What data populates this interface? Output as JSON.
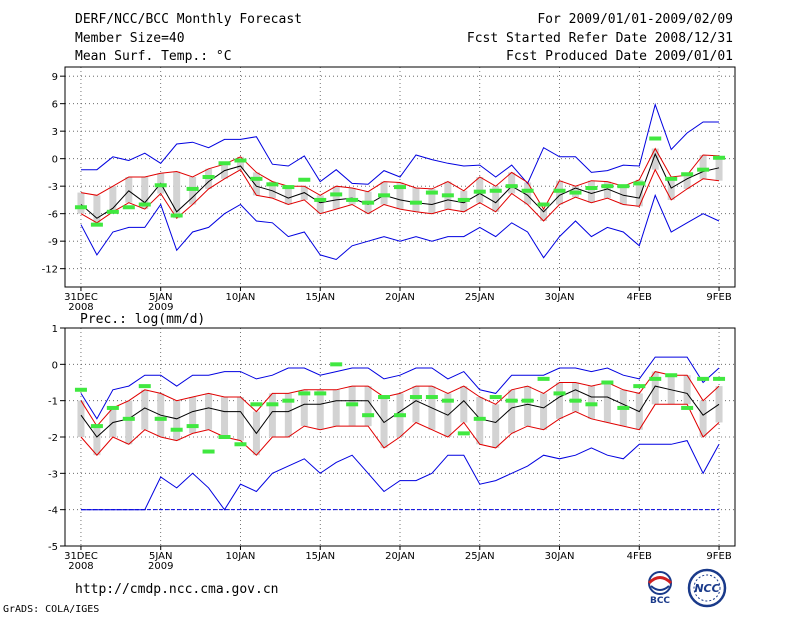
{
  "header": {
    "title": "DERF/NCC/BCC Monthly Forecast",
    "member_size": "Member Size=40",
    "variable": "Mean Surf. Temp.: °C",
    "period": "For 2009/01/01-2009/02/09",
    "fcst_started": "Fcst Started Refer Date 2008/12/31",
    "fcst_produced": "Fcst Produced Date 2009/01/01"
  },
  "footer": {
    "url": "http://cmdp.ncc.cma.gov.cn",
    "credit": "GrADS: COLA/IGES",
    "logo_left_text": "BCC",
    "logo_right_text": "NCC"
  },
  "colors": {
    "box": "#d3d3d3",
    "obs": "#40e840",
    "mean": "#000000",
    "inner": "#e00000",
    "outer": "#0000e0",
    "grid": "#555555"
  },
  "chart_data": [
    {
      "type": "line",
      "title": "Mean Surf. Temp.: °C",
      "xlabel": "",
      "ylabel": "°C",
      "x_ticks": [
        "31DEC\n2008",
        "5JAN\n2009",
        "10JAN",
        "15JAN",
        "20JAN",
        "25JAN",
        "30JAN",
        "4FEB",
        "9FEB"
      ],
      "ylim": [
        -14,
        10
      ],
      "yticks": [
        9,
        6,
        3,
        0,
        -3,
        -6,
        -9,
        -12
      ],
      "days": 41,
      "series": [
        {
          "name": "ensemble_max",
          "values": [
            -1.2,
            -1.2,
            0.2,
            -0.2,
            0.6,
            -0.5,
            1.6,
            1.8,
            1.2,
            2.1,
            2.1,
            2.4,
            -0.6,
            -0.8,
            0.3,
            -2.5,
            -1.2,
            -2.7,
            -2.8,
            -1.3,
            -2.0,
            0.4,
            -0.1,
            -0.5,
            -0.8,
            -0.7,
            -2.0,
            -0.7,
            -2.7,
            1.2,
            0.2,
            0.2,
            -1.5,
            -1.3,
            -0.7,
            -0.8,
            5.9,
            1.0,
            2.8,
            4.0,
            4.0
          ]
        },
        {
          "name": "upper_quartile",
          "values": [
            -3.7,
            -4.0,
            -3.0,
            -2.0,
            -2.0,
            -1.6,
            -1.4,
            -2.0,
            -1.1,
            -0.6,
            0.2,
            -1.5,
            -2.5,
            -3.0,
            -3.0,
            -4.0,
            -3.0,
            -3.2,
            -3.6,
            -2.5,
            -2.6,
            -3.2,
            -3.3,
            -2.5,
            -3.5,
            -2.0,
            -3.0,
            -1.5,
            -2.6,
            -5.5,
            -2.4,
            -3.0,
            -2.4,
            -2.5,
            -3.0,
            -2.3,
            1.1,
            -2.0,
            -1.8,
            0.4,
            0.3
          ]
        },
        {
          "name": "ensemble_mean",
          "values": [
            -5.0,
            -6.5,
            -5.4,
            -3.5,
            -4.8,
            -2.7,
            -5.8,
            -4.2,
            -2.5,
            -1.3,
            -0.8,
            -3.0,
            -3.5,
            -4.3,
            -3.7,
            -4.8,
            -4.5,
            -4.3,
            -5.0,
            -4.0,
            -4.5,
            -4.8,
            -5.0,
            -4.5,
            -4.8,
            -3.8,
            -4.8,
            -3.0,
            -4.0,
            -5.8,
            -4.0,
            -3.2,
            -3.8,
            -3.3,
            -4.0,
            -4.3,
            0.5,
            -3.2,
            -2.2,
            -1.4,
            -1.0
          ]
        },
        {
          "name": "lower_quartile",
          "values": [
            -6.0,
            -7.0,
            -5.8,
            -4.8,
            -5.5,
            -3.8,
            -6.5,
            -5.0,
            -3.3,
            -2.2,
            -1.2,
            -4.0,
            -4.3,
            -5.0,
            -4.5,
            -6.0,
            -5.5,
            -5.0,
            -6.0,
            -5.0,
            -5.5,
            -5.8,
            -6.0,
            -5.5,
            -5.8,
            -4.8,
            -5.8,
            -3.8,
            -5.0,
            -6.8,
            -5.0,
            -4.2,
            -4.8,
            -4.3,
            -5.0,
            -5.2,
            -1.2,
            -4.5,
            -3.3,
            -2.2,
            -2.4
          ]
        },
        {
          "name": "ensemble_min",
          "values": [
            -7.2,
            -10.5,
            -8.0,
            -7.5,
            -7.5,
            -5.0,
            -10.0,
            -8.0,
            -7.5,
            -6.0,
            -5.0,
            -6.8,
            -7.0,
            -8.5,
            -8.0,
            -10.5,
            -11.0,
            -9.5,
            -9.0,
            -8.5,
            -9.0,
            -8.5,
            -9.0,
            -8.5,
            -8.5,
            -7.5,
            -8.5,
            -7.0,
            -8.0,
            -10.8,
            -8.5,
            -6.8,
            -8.5,
            -7.5,
            -8.0,
            -9.5,
            -4.0,
            -8.0,
            -7.0,
            -6.0,
            -6.8
          ]
        },
        {
          "name": "observed",
          "values": [
            -5.3,
            -7.2,
            -5.8,
            -5.3,
            -5.0,
            -2.9,
            -6.2,
            -3.3,
            -2.0,
            -0.5,
            -0.2,
            -2.2,
            -2.8,
            -3.1,
            -2.3,
            -4.5,
            -3.9,
            -4.5,
            -4.8,
            -4.0,
            -3.1,
            -4.8,
            -3.7,
            -4.0,
            -4.5,
            -3.6,
            -3.5,
            -3.0,
            -3.5,
            -5.0,
            -3.5,
            -3.7,
            -3.2,
            -3.0,
            -3.0,
            -2.7,
            2.2,
            -2.2,
            -1.7,
            -1.2,
            0.1
          ]
        }
      ]
    },
    {
      "type": "line",
      "title": "Prec.: log(mm/d)",
      "xlabel": "",
      "ylabel": "log(mm/d)",
      "x_ticks": [
        "31DEC\n2008",
        "5JAN\n2009",
        "10JAN",
        "15JAN",
        "20JAN",
        "25JAN",
        "30JAN",
        "4FEB",
        "9FEB"
      ],
      "ylim": [
        -5,
        1
      ],
      "yticks": [
        1,
        0,
        -1,
        -2,
        -3,
        -4,
        -5
      ],
      "days": 41,
      "series": [
        {
          "name": "ensemble_max",
          "values": [
            -0.8,
            -1.5,
            -0.7,
            -0.6,
            -0.3,
            -0.3,
            -0.6,
            -0.3,
            -0.3,
            -0.2,
            -0.2,
            -0.4,
            -0.3,
            -0.1,
            -0.1,
            -0.3,
            -0.2,
            -0.1,
            -0.1,
            -0.4,
            -0.3,
            -0.1,
            -0.1,
            -0.4,
            -0.2,
            -0.7,
            -0.8,
            -0.3,
            -0.3,
            -0.3,
            -0.1,
            -0.1,
            -0.2,
            -0.1,
            -0.3,
            -0.4,
            0.2,
            0.2,
            0.2,
            -0.5,
            -0.1
          ]
        },
        {
          "name": "upper_quartile",
          "values": [
            -1.0,
            -1.7,
            -1.2,
            -1.0,
            -0.7,
            -0.8,
            -1.0,
            -0.9,
            -0.8,
            -0.9,
            -0.9,
            -1.3,
            -0.8,
            -0.8,
            -0.7,
            -0.7,
            -0.7,
            -0.6,
            -0.6,
            -0.9,
            -0.8,
            -0.6,
            -0.6,
            -0.8,
            -0.6,
            -0.9,
            -1.1,
            -0.7,
            -0.6,
            -0.8,
            -0.5,
            -0.5,
            -0.6,
            -0.5,
            -0.7,
            -0.8,
            -0.2,
            -0.3,
            -0.3,
            -1.0,
            -0.6
          ]
        },
        {
          "name": "ensemble_mean",
          "values": [
            -1.4,
            -2.0,
            -1.6,
            -1.5,
            -1.2,
            -1.4,
            -1.5,
            -1.3,
            -1.2,
            -1.3,
            -1.3,
            -1.9,
            -1.3,
            -1.3,
            -1.1,
            -1.1,
            -1.0,
            -1.0,
            -1.0,
            -1.6,
            -1.3,
            -1.0,
            -1.2,
            -1.4,
            -1.0,
            -1.5,
            -1.6,
            -1.2,
            -1.1,
            -1.2,
            -0.9,
            -0.7,
            -0.9,
            -0.9,
            -1.1,
            -1.3,
            -0.6,
            -0.7,
            -0.8,
            -1.4,
            -1.1
          ]
        },
        {
          "name": "lower_quartile",
          "values": [
            -2.0,
            -2.5,
            -2.0,
            -2.2,
            -1.8,
            -2.0,
            -2.1,
            -1.9,
            -1.8,
            -2.0,
            -2.1,
            -2.5,
            -2.0,
            -2.0,
            -1.7,
            -1.8,
            -1.7,
            -1.7,
            -1.7,
            -2.3,
            -2.0,
            -1.6,
            -1.8,
            -2.0,
            -1.6,
            -2.2,
            -2.3,
            -1.9,
            -1.7,
            -1.8,
            -1.5,
            -1.3,
            -1.5,
            -1.6,
            -1.7,
            -1.8,
            -1.1,
            -1.1,
            -1.1,
            -2.0,
            -1.6
          ]
        },
        {
          "name": "ensemble_min",
          "values": [
            -4.0,
            -4.0,
            -4.0,
            -4.0,
            -4.0,
            -3.1,
            -3.4,
            -3.0,
            -3.4,
            -4.0,
            -3.3,
            -3.5,
            -3.0,
            -2.8,
            -2.6,
            -3.0,
            -2.7,
            -2.5,
            -3.0,
            -3.5,
            -3.2,
            -3.2,
            -3.0,
            -2.5,
            -2.5,
            -3.3,
            -3.2,
            -3.0,
            -2.8,
            -2.5,
            -2.6,
            -2.5,
            -2.3,
            -2.5,
            -2.6,
            -2.2,
            -2.2,
            -2.2,
            -2.1,
            -3.0,
            -2.2
          ]
        },
        {
          "name": "observed",
          "values": [
            -0.7,
            -1.7,
            -1.2,
            -1.5,
            -0.6,
            -1.5,
            -1.8,
            -1.7,
            -2.4,
            -2.0,
            -2.2,
            -1.1,
            -1.1,
            -1.0,
            -0.8,
            -0.8,
            0.0,
            -1.1,
            -1.4,
            -0.9,
            -1.4,
            -0.9,
            -0.9,
            -1.0,
            -1.9,
            -1.5,
            -0.9,
            -1.0,
            -1.0,
            -0.4,
            -0.8,
            -1.0,
            -1.1,
            -0.5,
            -1.2,
            -0.6,
            -0.4,
            -0.3,
            -1.2,
            -0.4,
            -0.4
          ]
        }
      ],
      "floor_value": -4.0
    }
  ]
}
